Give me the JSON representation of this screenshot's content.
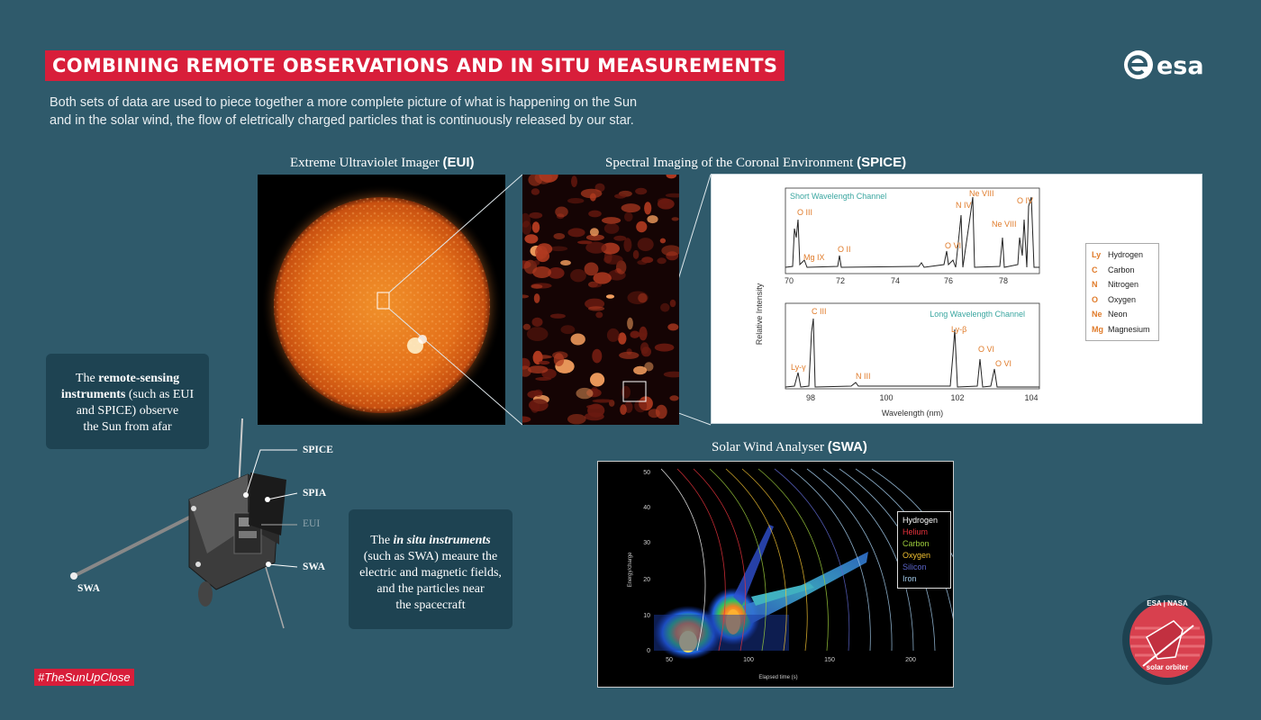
{
  "header": {
    "title": "COMBINING REMOTE OBSERVATIONS AND IN SITU MEASUREMENTS",
    "intro_line1": "Both sets of data are used to piece together a more complete picture of what is happening on the Sun",
    "intro_line2": "and in the solar wind, the flow of eletrically charged particles that is continuously released by our star.",
    "logo_text": "esa"
  },
  "eui": {
    "title_prefix": "Extreme Ultraviolet Imager ",
    "title_bold": "(EUI)"
  },
  "spice": {
    "title_prefix": "Spectral Imaging of the Coronal Environment ",
    "title_bold": "(SPICE)",
    "y_label": "Relative Intensity",
    "x_label": "Wavelength (nm)",
    "short_channel": {
      "label": "Short Wavelength Channel",
      "ticks": [
        "70",
        "72",
        "74",
        "76",
        "78"
      ],
      "lines": [
        "O III",
        "Mg IX",
        "O II",
        "O VI",
        "N IV",
        "Ne VIII",
        "Ne VIII",
        "O IV"
      ]
    },
    "long_channel": {
      "label": "Long Wavelength Channel",
      "ticks": [
        "98",
        "100",
        "102",
        "104"
      ],
      "lines": [
        "C III",
        "Ly-γ",
        "N III",
        "Ly-β",
        "O VI",
        "O VI"
      ]
    },
    "legend": [
      {
        "sym": "Ly",
        "name": "Hydrogen"
      },
      {
        "sym": "C",
        "name": "Carbon"
      },
      {
        "sym": "N",
        "name": "Nitrogen"
      },
      {
        "sym": "O",
        "name": "Oxygen"
      },
      {
        "sym": "Ne",
        "name": "Neon"
      },
      {
        "sym": "Mg",
        "name": "Magnesium"
      }
    ]
  },
  "swa": {
    "title_prefix": "Solar Wind Analyser ",
    "title_bold": "(SWA)",
    "y_label": "Energy/charge",
    "x_label": "Elapsed time (s)",
    "y_ticks": [
      "50",
      "40",
      "30",
      "20",
      "10",
      "0"
    ],
    "x_ticks": [
      "50",
      "100",
      "150",
      "200"
    ],
    "legend": [
      {
        "name": "Hydrogen",
        "color": "#ffffff"
      },
      {
        "name": "Helium",
        "color": "#e8323c"
      },
      {
        "name": "Carbon",
        "color": "#9ccc3c"
      },
      {
        "name": "Oxygen",
        "color": "#f0c030"
      },
      {
        "name": "Silicon",
        "color": "#5a64c8"
      },
      {
        "name": "Iron",
        "color": "#a0c8e8"
      }
    ]
  },
  "boxes": {
    "remote_pre": "The ",
    "remote_bold1": "remote-sensing",
    "remote_bold2": "instruments",
    "remote_post1": " (such as EUI",
    "remote_line3": "and SPICE) observe",
    "remote_line4": "the Sun from afar",
    "insitu_pre": "The ",
    "insitu_em": "in situ instruments",
    "insitu_line2": "(such as SWA) meaure the",
    "insitu_line3": "electric and magnetic fields,",
    "insitu_line4": "and the particles near",
    "insitu_line5": "the spacecraft"
  },
  "spacecraft_labels": {
    "spice": "SPICE",
    "spia": "SPIA",
    "eui": "EUI",
    "swa_right": "SWA",
    "swa_left": "SWA"
  },
  "footer": {
    "hashtag": "#TheSunUpClose",
    "badge_top": "ESA | NASA",
    "badge_bottom": "solar orbiter"
  },
  "colors": {
    "accent": "#d81e3a",
    "background": "#2f5a6b",
    "box": "#1e4352",
    "spectrum_label": "#e07b2a",
    "channel_label": "#3aa6a0"
  }
}
